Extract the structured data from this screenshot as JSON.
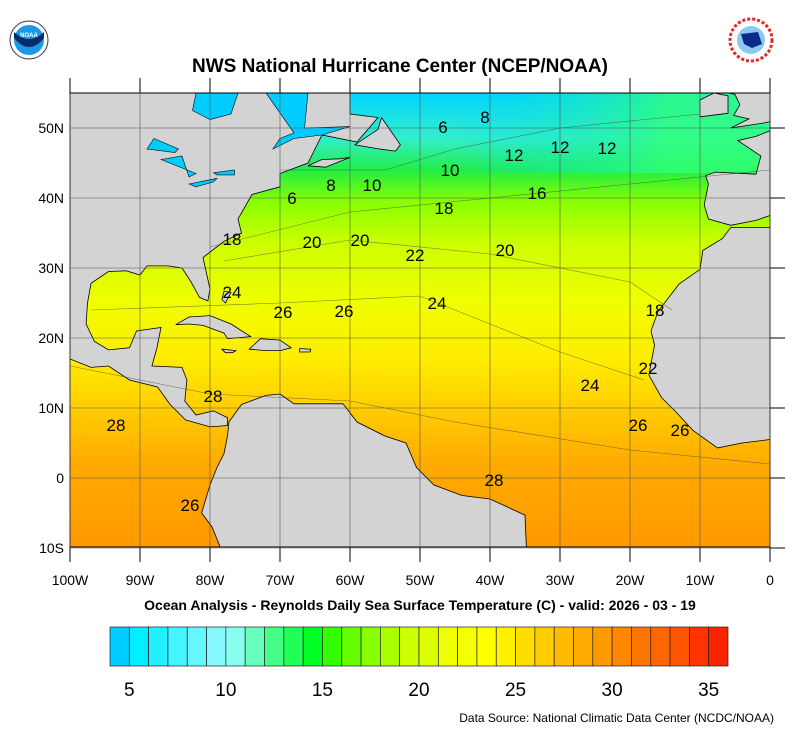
{
  "header": {
    "title": "NWS National Hurricane Center (NCEP/NOAA)",
    "left_logo": "NOAA",
    "right_logo": "NATIONAL WEATHER SERVICE"
  },
  "map": {
    "region": "Atlantic Ocean",
    "lat_labels": [
      "50N",
      "40N",
      "30N",
      "20N",
      "10N",
      "0",
      "10S"
    ],
    "lon_labels": [
      "100W",
      "90W",
      "80W",
      "70W",
      "60W",
      "50W",
      "40W",
      "30W",
      "20W",
      "10W",
      "0"
    ],
    "lat_range": [
      -10,
      55
    ],
    "lon_range": [
      -100,
      0
    ],
    "land_color": "#d3d3d3",
    "contour_labels": [
      "6",
      "8",
      "12",
      "12",
      "12",
      "10",
      "16",
      "18",
      "10",
      "8",
      "6",
      "18",
      "20",
      "20",
      "22",
      "20",
      "24",
      "26",
      "26",
      "24",
      "18",
      "22",
      "24",
      "28",
      "28",
      "26",
      "26",
      "28",
      "26"
    ]
  },
  "subtitle": "Ocean Analysis - Reynolds Daily Sea Surface Temperature (C) - valid: 2026 - 03 - 19",
  "colorbar": {
    "range": [
      4,
      36
    ],
    "labels": [
      "5",
      "10",
      "15",
      "20",
      "25",
      "30",
      "35"
    ],
    "colors": [
      "#00ccff",
      "#00eeff",
      "#22f0ff",
      "#44f4ff",
      "#66f6ff",
      "#88f8ff",
      "#88ffee",
      "#66ffbb",
      "#44ff88",
      "#22ff55",
      "#00ff22",
      "#33ff00",
      "#66ff00",
      "#88ff00",
      "#aaff00",
      "#ccff00",
      "#ddff00",
      "#eeff00",
      "#f4ff00",
      "#ffff00",
      "#fff200",
      "#ffdd00",
      "#ffcc00",
      "#ffbb00",
      "#ffaa00",
      "#ff9900",
      "#ff8800",
      "#ff7700",
      "#ff6600",
      "#ff5500",
      "#ff3300",
      "#ff2200"
    ]
  },
  "footer": {
    "source": "Data Source: National Climatic Data Center (NCDC/NOAA)"
  }
}
